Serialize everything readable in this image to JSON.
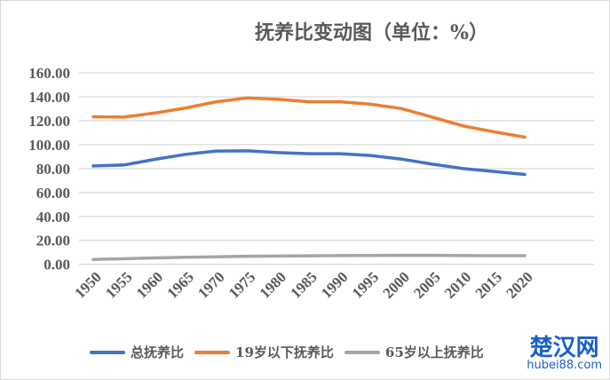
{
  "chart_data": {
    "type": "line",
    "title": "抚养比变动图（单位：%）",
    "x": [
      1950,
      1955,
      1960,
      1965,
      1970,
      1975,
      1980,
      1985,
      1990,
      1995,
      2000,
      2005,
      2010,
      2015,
      2020
    ],
    "ylim": [
      0,
      160
    ],
    "yticks": [
      "0.00",
      "20.00",
      "40.00",
      "60.00",
      "80.00",
      "100.00",
      "120.00",
      "140.00",
      "160.00"
    ],
    "grid": true,
    "legend": "bottom",
    "series": [
      {
        "name": "总抚养比",
        "color": "#4472c4",
        "values": [
          82.2,
          83,
          87.7,
          91.9,
          94.6,
          94.8,
          93.3,
          92.4,
          92.4,
          90.9,
          87.9,
          83.7,
          80,
          77.6,
          75.1
        ]
      },
      {
        "name": "19岁以下抚养比",
        "color": "#ed7d31",
        "values": [
          123.3,
          123,
          126.4,
          130.6,
          135.8,
          139,
          137.8,
          135.8,
          135.8,
          133.8,
          130.1,
          123,
          115.6,
          110.7,
          106.2
        ]
      },
      {
        "name": "65岁以上抚养比",
        "color": "#a5a5a5",
        "values": [
          4,
          4.7,
          5.3,
          5.9,
          6.3,
          6.7,
          6.9,
          7.1,
          7.3,
          7.4,
          7.5,
          7.5,
          7.3,
          7.2,
          7.2
        ]
      }
    ]
  },
  "watermark": {
    "name": "楚汉网",
    "url": "hubei88.com"
  }
}
